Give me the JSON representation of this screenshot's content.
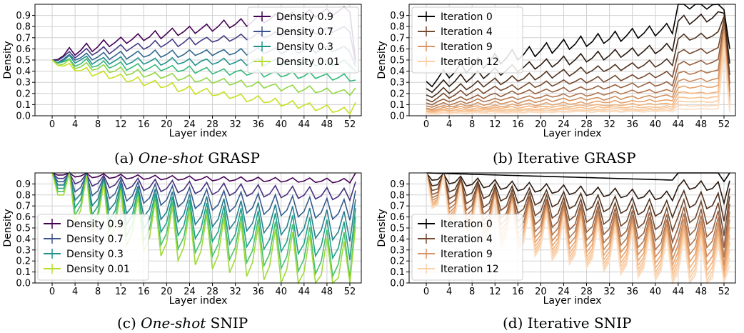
{
  "captions": [
    {
      "prefix": "(a) ",
      "italic": "One-shot",
      "suffix": " GRASP"
    },
    {
      "prefix": "(b) Iterative GRASP",
      "italic": "",
      "suffix": ""
    },
    {
      "prefix": "(c) ",
      "italic": "One-shot",
      "suffix": " SNIP"
    },
    {
      "prefix": "(d) Iterative SNIP",
      "italic": "",
      "suffix": ""
    }
  ],
  "chart_data": [
    {
      "type": "line",
      "panel": "a",
      "xlabel": "Layer index",
      "ylabel": "Density",
      "xlim": [
        -3,
        54
      ],
      "ylim": [
        0,
        1.0
      ],
      "xticks": [
        0,
        4,
        8,
        12,
        16,
        20,
        24,
        28,
        32,
        36,
        40,
        44,
        48,
        52
      ],
      "yticks": [
        0.0,
        0.1,
        0.2,
        0.3,
        0.4,
        0.5,
        0.6,
        0.7,
        0.8,
        0.9
      ],
      "grid": true,
      "legend_position": "top-right",
      "legend_entries": [
        "Density 0.9",
        "Density 0.7",
        "Density 0.3",
        "Density 0.01"
      ],
      "colors": [
        "#440154",
        "#443983",
        "#31688e",
        "#21918c",
        "#35b779",
        "#90d743",
        "#c8e020"
      ],
      "legend_colors": [
        "#440154",
        "#3b528b",
        "#21918c",
        "#b5de2b"
      ],
      "n_points": 54,
      "series_first_values": [
        0.5,
        0.5,
        0.5,
        0.5,
        0.5,
        0.5,
        0.5
      ],
      "series_final_density": [
        0.95,
        0.8,
        0.65,
        0.5,
        0.35,
        0.2,
        0.02
      ]
    },
    {
      "type": "line",
      "panel": "b",
      "xlabel": "Layer index",
      "ylabel": "Density",
      "xlim": [
        -3,
        54
      ],
      "ylim": [
        0,
        1.0
      ],
      "xticks": [
        0,
        4,
        8,
        12,
        16,
        20,
        24,
        28,
        32,
        36,
        40,
        44,
        48,
        52
      ],
      "yticks": [
        0.0,
        0.1,
        0.2,
        0.3,
        0.4,
        0.5,
        0.6,
        0.7,
        0.8,
        0.9
      ],
      "grid": true,
      "legend_position": "top-left",
      "legend_entries": [
        "Iteration 0",
        "Iteration 4",
        "Iteration 9",
        "Iteration 12"
      ],
      "colors": [
        "#000000",
        "#2a1a10",
        "#4f3220",
        "#744a30",
        "#966040",
        "#b47850",
        "#cf8f5f",
        "#e6a26e",
        "#f2b27d",
        "#f6c08f",
        "#f8cca3",
        "#fad6b4",
        "#fbdec4"
      ],
      "legend_colors": [
        "#000000",
        "#744a30",
        "#d89462",
        "#fbd0a8"
      ],
      "n_points": 54
    },
    {
      "type": "line",
      "panel": "c",
      "xlabel": "Layer index",
      "ylabel": "Density",
      "xlim": [
        -3,
        54
      ],
      "ylim": [
        0,
        1.0
      ],
      "xticks": [
        0,
        4,
        8,
        12,
        16,
        20,
        24,
        28,
        32,
        36,
        40,
        44,
        48,
        52
      ],
      "yticks": [
        0.0,
        0.1,
        0.2,
        0.3,
        0.4,
        0.5,
        0.6,
        0.7,
        0.8,
        0.9
      ],
      "grid": true,
      "legend_position": "lower-left",
      "legend_entries": [
        "Density 0.9",
        "Density 0.7",
        "Density 0.3",
        "Density 0.01"
      ],
      "colors": [
        "#440154",
        "#46327e",
        "#365c8d",
        "#277f8e",
        "#1fa187",
        "#4ac16d",
        "#a0da39"
      ],
      "legend_colors": [
        "#440154",
        "#3b528b",
        "#21918c",
        "#b5de2b"
      ],
      "n_points": 54
    },
    {
      "type": "line",
      "panel": "d",
      "xlabel": "Layer index",
      "ylabel": "Density",
      "xlim": [
        -3,
        54
      ],
      "ylim": [
        0,
        1.0
      ],
      "xticks": [
        0,
        4,
        8,
        12,
        16,
        20,
        24,
        28,
        32,
        36,
        40,
        44,
        48,
        52
      ],
      "yticks": [
        0.0,
        0.1,
        0.2,
        0.3,
        0.4,
        0.5,
        0.6,
        0.7,
        0.8,
        0.9
      ],
      "grid": true,
      "legend_position": "lower-left",
      "legend_entries": [
        "Iteration 0",
        "Iteration 4",
        "Iteration 9",
        "Iteration 12"
      ],
      "colors": [
        "#000000",
        "#2a1a10",
        "#4f3220",
        "#744a30",
        "#966040",
        "#b47850",
        "#cf8f5f",
        "#e6a26e",
        "#f2b27d",
        "#f6c08f",
        "#f8cca3",
        "#fad6b4",
        "#fbdec4"
      ],
      "legend_colors": [
        "#000000",
        "#744a30",
        "#d89462",
        "#fbd0a8"
      ],
      "n_points": 54
    }
  ]
}
